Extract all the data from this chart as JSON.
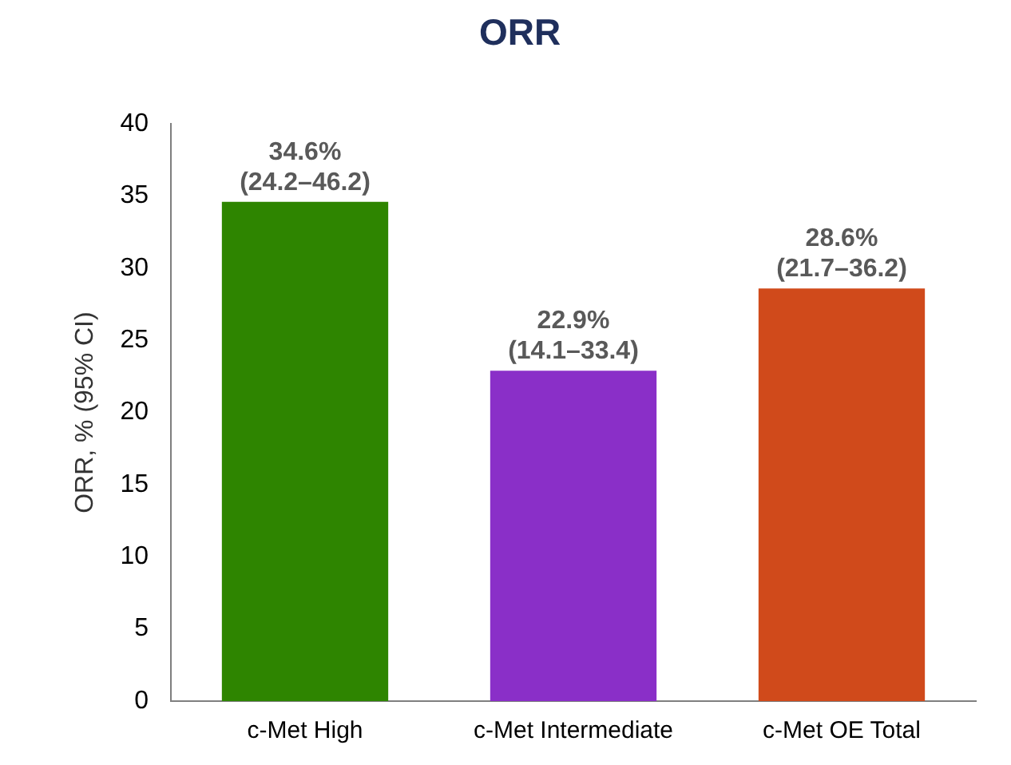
{
  "chart_data": {
    "type": "bar",
    "title": "ORR",
    "ylabel": "ORR, % (95% CI)",
    "categories": [
      "c-Met High",
      "c-Met Intermediate",
      "c-Met OE Total"
    ],
    "values": [
      34.6,
      22.9,
      28.6
    ],
    "colors": [
      "#2e8500",
      "#8a2fc8",
      "#d04a1b"
    ],
    "value_labels": [
      "34.6%\n(24.2–46.2)",
      "22.9%\n(14.1–33.4)",
      "28.6%\n(21.7–36.2)"
    ],
    "ylim": [
      0,
      40
    ],
    "yticks": [
      0,
      5,
      10,
      15,
      20,
      25,
      30,
      35,
      40
    ],
    "grid": false,
    "legend": false
  }
}
